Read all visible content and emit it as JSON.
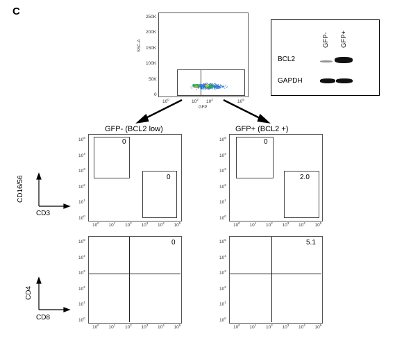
{
  "panel_label": "C",
  "top_plot": {
    "ylabel": "SSC-A",
    "xlabel": "GFP",
    "y_ticks": [
      "250K",
      "200K",
      "150K",
      "100K",
      "50K",
      "0"
    ],
    "x_ticks": [
      {
        "base": "10",
        "exp": "0"
      },
      {
        "base": "10",
        "exp": "2"
      },
      {
        "base": "10",
        "exp": "3"
      },
      {
        "base": "10",
        "exp": "5"
      }
    ]
  },
  "western_blot": {
    "columns": [
      "GFP-",
      "GFP+"
    ],
    "rows": [
      "BCL2",
      "GAPDH"
    ]
  },
  "left_column_title": "GFP- (BCL2 low)",
  "right_column_title": "GFP+ (BCL2 +)",
  "upper_axes": {
    "y": "CD16/56",
    "x": "CD3"
  },
  "lower_axes": {
    "y": "CD4",
    "x": "CD8"
  },
  "log_ticks": [
    {
      "base": "10",
      "exp": "5"
    },
    {
      "base": "10",
      "exp": "4"
    },
    {
      "base": "10",
      "exp": "3"
    },
    {
      "base": "10",
      "exp": "2"
    },
    {
      "base": "10",
      "exp": "1"
    },
    {
      "base": "10",
      "exp": "0"
    }
  ],
  "x_log_ticks": [
    {
      "base": "10",
      "exp": "0"
    },
    {
      "base": "10",
      "exp": "1"
    },
    {
      "base": "10",
      "exp": "2"
    },
    {
      "base": "10",
      "exp": "3"
    },
    {
      "base": "10",
      "exp": "4"
    },
    {
      "base": "10",
      "exp": "5"
    }
  ],
  "percentages": {
    "left_upper_top": "0",
    "left_upper_right": "0",
    "right_upper_top": "0",
    "right_upper_right": "2.0",
    "left_lower": "0",
    "right_lower": "5.1"
  },
  "colors": {
    "dot_blue": "#2a6fd6",
    "dot_dark": "#123a8c",
    "gate": "#444444"
  }
}
